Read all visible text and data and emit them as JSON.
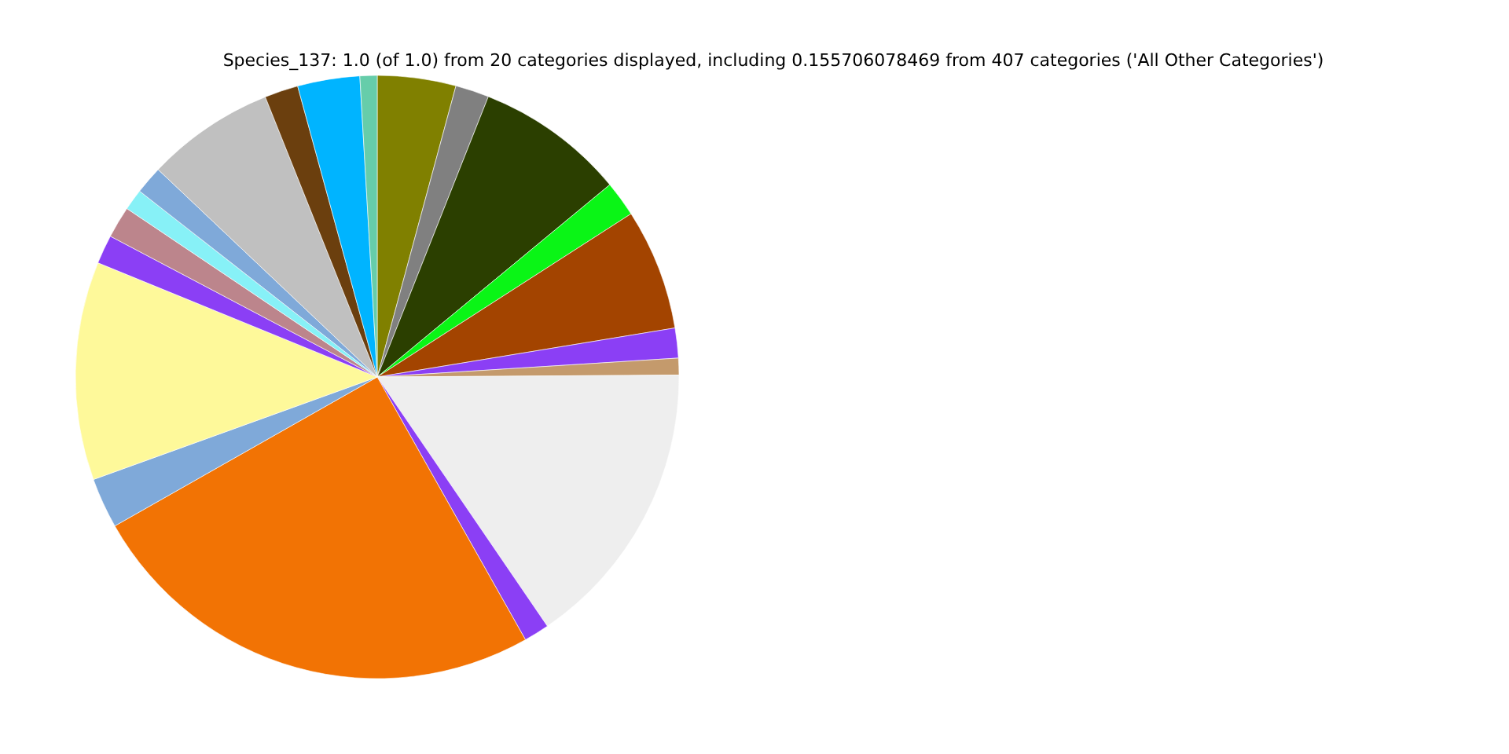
{
  "chart_data": {
    "type": "pie",
    "title": "Species_137: 1.0 (of 1.0) from 20 categories displayed, including 0.155706078469 from 407 categories ('All Other Categories')",
    "categories": [
      null,
      null,
      null,
      null,
      null,
      null,
      null,
      null,
      null,
      null,
      null,
      null,
      null,
      null,
      null,
      null,
      null,
      null,
      null,
      null
    ],
    "values": [
      4.2,
      1.8,
      8.0,
      1.9,
      6.5,
      1.6,
      0.9,
      15.57,
      1.36,
      24.95,
      2.7,
      11.7,
      1.55,
      1.7,
      1.14,
      1.5,
      6.88,
      1.8,
      3.33,
      0.92
    ],
    "colors": [
      "#808000",
      "#808080",
      "#2b3f00",
      "#0af516",
      "#a34400",
      "#8b3ff5",
      "#c49a6c",
      "#eeeeee",
      "#8b3ff5",
      "#f27304",
      "#7fa9d9",
      "#fef99a",
      "#8b3ff5",
      "#bc858c",
      "#87f1f7",
      "#7fa9d9",
      "#c0c0c0",
      "#6b3f0e",
      "#00b4ff",
      "#66cdaa"
    ]
  }
}
